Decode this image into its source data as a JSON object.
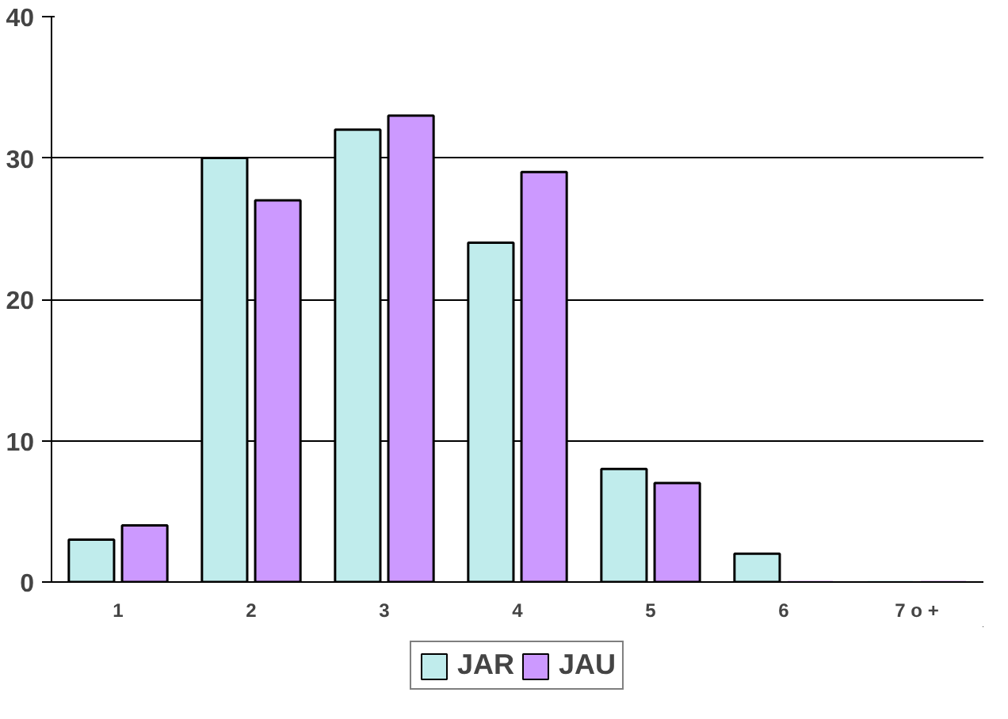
{
  "chart_data": {
    "type": "bar",
    "categories": [
      "1",
      "2",
      "3",
      "4",
      "5",
      "6",
      "7 o +"
    ],
    "series": [
      {
        "name": "JAR",
        "color": "#c0ecec",
        "values": [
          3,
          30,
          32,
          24,
          8,
          2,
          0
        ]
      },
      {
        "name": "JAU",
        "color": "#cc99ff",
        "values": [
          4,
          27,
          33,
          29,
          7,
          0,
          0
        ]
      }
    ],
    "ylim": [
      0,
      40
    ],
    "yticks": [
      0,
      10,
      20,
      30,
      40
    ],
    "grid": "y",
    "legend": "bottom"
  }
}
